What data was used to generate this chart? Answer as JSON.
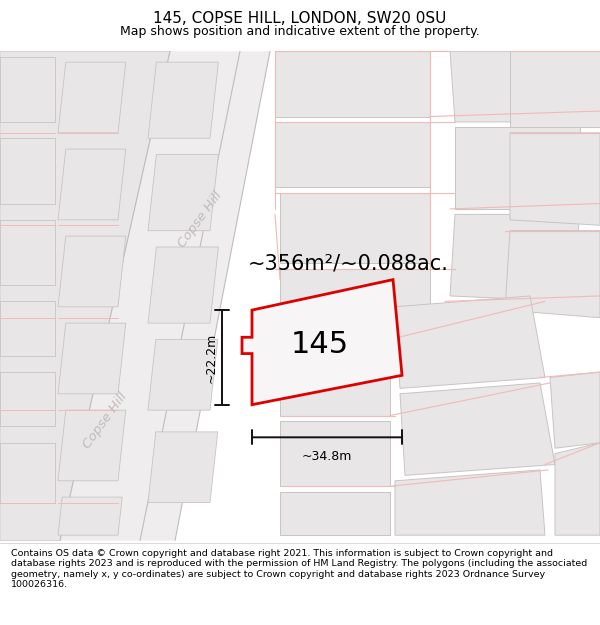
{
  "title": "145, COPSE HILL, LONDON, SW20 0SU",
  "subtitle": "Map shows position and indicative extent of the property.",
  "area_text": "~356m²/~0.088ac.",
  "number_label": "145",
  "dim_width": "~34.8m",
  "dim_height": "~22.2m",
  "map_bg": "#f7f5f5",
  "block_fc": "#e8e6e6",
  "block_ec": "#c8c4c4",
  "road_stripe_fc": "#f0edee",
  "road_stripe_ec": "#ddd8d8",
  "red_line_color": "#f5b8b8",
  "dark_red_plot": "#e8000000",
  "plot_red": "#dd0000",
  "dim_line_color": "#111111",
  "label_color": "#c0bcbc",
  "footer_text": "Contains OS data © Crown copyright and database right 2021. This information is subject to Crown copyright and database rights 2023 and is reproduced with the permission of HM Land Registry. The polygons (including the associated geometry, namely x, y co-ordinates) are subject to Crown copyright and database rights 2023 Ordnance Survey 100026316.",
  "copse_hill_upper": "Copse Hill",
  "copse_hill_lower": "Copse Hill",
  "title_fontsize": 11,
  "subtitle_fontsize": 9,
  "area_fontsize": 15,
  "label_fontsize": 22,
  "footer_fontsize": 6.8
}
